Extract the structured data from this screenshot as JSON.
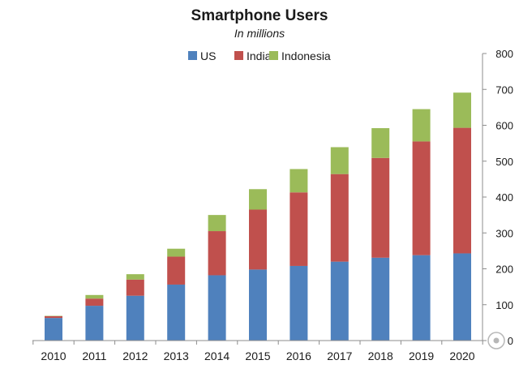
{
  "chart_data": {
    "type": "bar",
    "stacked": true,
    "title": "Smartphone Users",
    "subtitle": "In millions",
    "categories": [
      "2010",
      "2011",
      "2012",
      "2013",
      "2014",
      "2015",
      "2016",
      "2017",
      "2018",
      "2019",
      "2020"
    ],
    "series": [
      {
        "name": "US",
        "color": "#4f81bd",
        "values": [
          63,
          97,
          125,
          156,
          182,
          198,
          208,
          220,
          231,
          238,
          243
        ]
      },
      {
        "name": "India",
        "color": "#c0504d",
        "values": [
          5,
          20,
          45,
          78,
          123,
          167,
          205,
          244,
          278,
          317,
          350
        ]
      },
      {
        "name": "Indonesia",
        "color": "#9bbb59",
        "values": [
          1,
          10,
          15,
          22,
          45,
          57,
          65,
          75,
          83,
          90,
          98
        ]
      }
    ],
    "ylim": [
      0,
      800
    ],
    "yticks": [
      0,
      100,
      200,
      300,
      400,
      500,
      600,
      700,
      800
    ],
    "y_axis_side": "right",
    "xlabel": "",
    "ylabel": "",
    "grid": false,
    "legend_position": "top"
  }
}
